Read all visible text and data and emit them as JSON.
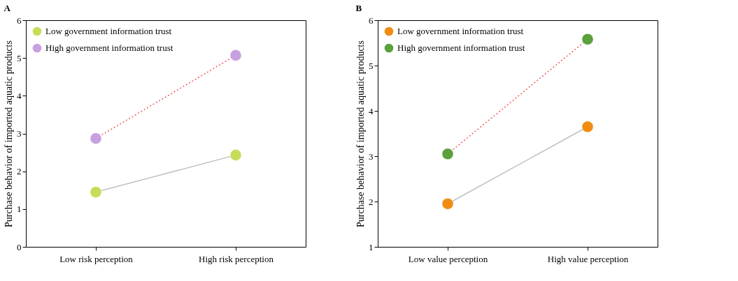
{
  "chart_data": [
    {
      "type": "line",
      "title": "A",
      "ylabel": "Purchase behavior of imported aquatic products",
      "categories": [
        "Low risk perception",
        "High risk perception"
      ],
      "ylim": [
        0,
        6
      ],
      "yticks": [
        0,
        1,
        2,
        3,
        4,
        5,
        6
      ],
      "grid": false,
      "legend": "top left",
      "marker": "circle",
      "series": [
        {
          "name": "Low government information trust",
          "color": "#c0c0c0",
          "colors": [
            "#c8dc5a",
            "#c8dc5a"
          ],
          "line_style": "solid",
          "values": [
            1.45,
            2.43
          ]
        },
        {
          "name": "High  government information trust",
          "color": "#f05a5a",
          "colors": [
            "#c8a0e0",
            "#c8a0e0"
          ],
          "line_style": "dotted",
          "values": [
            2.87,
            5.07
          ]
        }
      ]
    },
    {
      "type": "line",
      "title": "B",
      "ylabel": "Purchase behavior of imported aquatic products",
      "categories": [
        "Low value perception",
        "High value perception"
      ],
      "ylim": [
        1,
        6
      ],
      "yticks": [
        1,
        2,
        3,
        4,
        5,
        6
      ],
      "grid": false,
      "legend": "top left",
      "marker": "circle",
      "series": [
        {
          "name": "Low government information trust",
          "color": "#c0c0c0",
          "colors": [
            "#f08c14",
            "#f08c14"
          ],
          "line_style": "solid",
          "values": [
            1.95,
            3.65
          ]
        },
        {
          "name": "High government information trust",
          "color": "#f05a5a",
          "colors": [
            "#5aa03c",
            "#5aa03c"
          ],
          "line_style": "dotted",
          "values": [
            3.05,
            5.58
          ]
        }
      ]
    }
  ]
}
